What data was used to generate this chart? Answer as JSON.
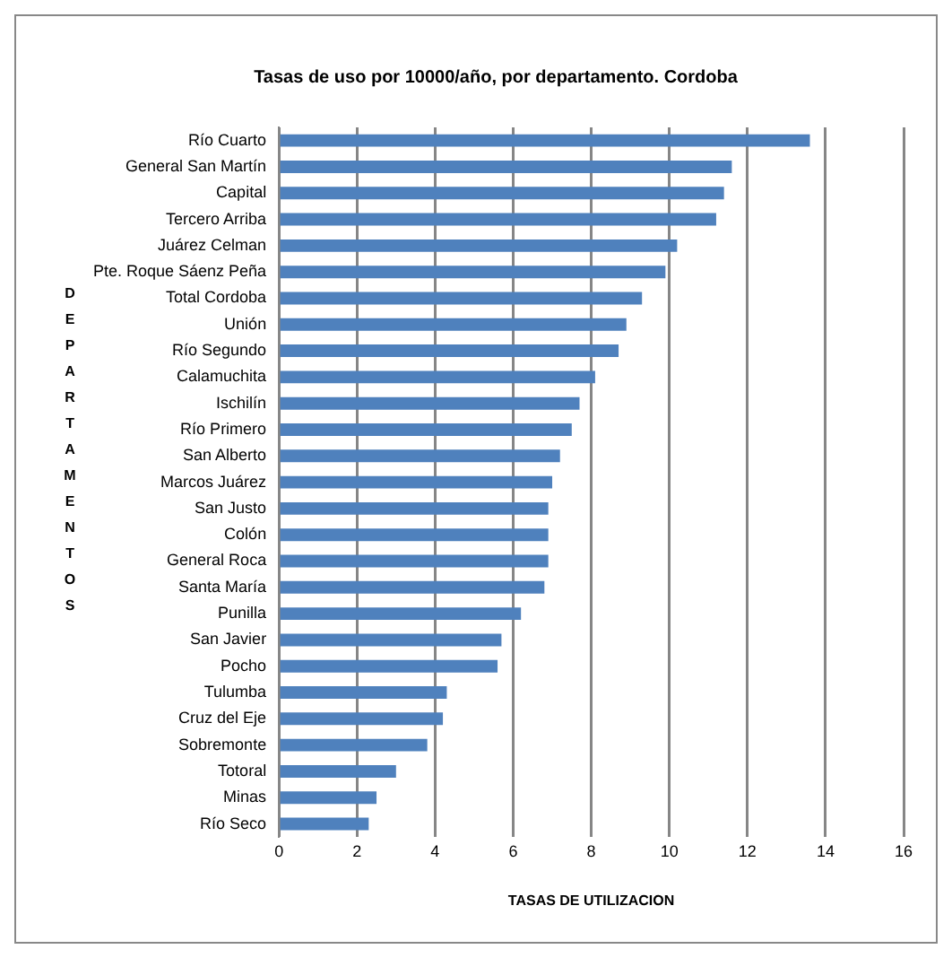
{
  "chart_data": {
    "type": "bar",
    "orientation": "horizontal",
    "title": "Tasas de uso por 10000/año, por departamento. Cordoba",
    "xlabel": "TASAS DE UTILIZACION",
    "ylabel": "DEPARTAMENTOS",
    "categories": [
      "Río Cuarto",
      "General San Martín",
      "Capital",
      "Tercero Arriba",
      "Juárez Celman",
      "Pte. Roque Sáenz Peña",
      "Total Cordoba",
      "Unión",
      "Río Segundo",
      "Calamuchita",
      "Ischilín",
      "Río Primero",
      "San Alberto",
      "Marcos Juárez",
      "San Justo",
      "Colón",
      "General Roca",
      "Santa María",
      "Punilla",
      "San Javier",
      "Pocho",
      "Tulumba",
      "Cruz del Eje",
      "Sobremonte",
      "Totoral",
      "Minas",
      "Río Seco"
    ],
    "values": [
      13.6,
      11.6,
      11.4,
      11.2,
      10.2,
      9.9,
      9.3,
      8.9,
      8.7,
      8.1,
      7.7,
      7.5,
      7.2,
      7.0,
      6.9,
      6.9,
      6.9,
      6.8,
      6.2,
      5.7,
      5.6,
      4.3,
      4.2,
      3.8,
      3.0,
      2.5,
      2.3
    ],
    "color": "#4f81bd",
    "xlim": [
      0,
      16
    ],
    "xticks": [
      0,
      2,
      4,
      6,
      8,
      10,
      12,
      14,
      16
    ],
    "grid": "x",
    "legend": false
  }
}
